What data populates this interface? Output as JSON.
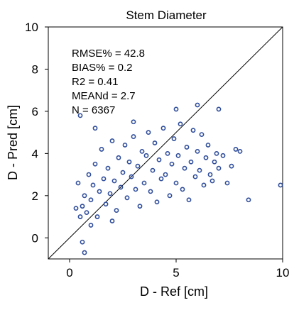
{
  "chart_data": {
    "type": "scatter",
    "title": "Stem Diameter",
    "xlabel": "D - Ref [cm]",
    "ylabel": "D - Pred [cm]",
    "xlim": [
      -1,
      10
    ],
    "ylim": [
      -1,
      10
    ],
    "xticks": [
      "0",
      "5",
      "10"
    ],
    "yticks": [
      "0",
      "2",
      "4",
      "6",
      "8",
      "10"
    ],
    "grid": false,
    "reference_line": "1:1",
    "marker": "open-circle",
    "color": "#2F4D9B",
    "stats": [
      "RMSE% = 42.8",
      "BIAS% = 0.2",
      "R2 = 0.41",
      "MEANd = 2.7",
      "N = 6367"
    ],
    "series": [
      {
        "points": [
          [
            0.5,
            1.0
          ],
          [
            0.6,
            1.5
          ],
          [
            0.7,
            2.0
          ],
          [
            0.8,
            1.2
          ],
          [
            0.9,
            3.0
          ],
          [
            1.0,
            1.8
          ],
          [
            1.1,
            2.5
          ],
          [
            1.2,
            3.5
          ],
          [
            1.3,
            1.0
          ],
          [
            1.4,
            2.2
          ],
          [
            1.5,
            4.2
          ],
          [
            1.6,
            2.8
          ],
          [
            1.7,
            1.6
          ],
          [
            1.8,
            3.3
          ],
          [
            1.9,
            2.1
          ],
          [
            2.0,
            4.6
          ],
          [
            2.1,
            2.7
          ],
          [
            2.2,
            1.3
          ],
          [
            2.3,
            3.8
          ],
          [
            2.4,
            2.4
          ],
          [
            2.5,
            3.1
          ],
          [
            2.6,
            4.4
          ],
          [
            2.7,
            1.9
          ],
          [
            2.8,
            3.6
          ],
          [
            2.9,
            2.9
          ],
          [
            3.0,
            4.8
          ],
          [
            3.1,
            2.3
          ],
          [
            3.2,
            3.4
          ],
          [
            3.3,
            1.5
          ],
          [
            3.4,
            4.1
          ],
          [
            3.5,
            2.6
          ],
          [
            3.6,
            3.9
          ],
          [
            3.7,
            5.0
          ],
          [
            3.8,
            2.2
          ],
          [
            3.9,
            3.2
          ],
          [
            4.0,
            4.5
          ],
          [
            4.1,
            1.7
          ],
          [
            4.2,
            3.7
          ],
          [
            4.3,
            2.8
          ],
          [
            4.4,
            5.2
          ],
          [
            4.5,
            3.0
          ],
          [
            4.6,
            4.0
          ],
          [
            4.7,
            2.0
          ],
          [
            4.8,
            3.5
          ],
          [
            4.9,
            4.7
          ],
          [
            5.0,
            2.6
          ],
          [
            5.1,
            3.9
          ],
          [
            5.2,
            5.4
          ],
          [
            5.3,
            2.3
          ],
          [
            5.4,
            3.3
          ],
          [
            5.5,
            4.3
          ],
          [
            5.6,
            1.8
          ],
          [
            5.7,
            3.6
          ],
          [
            5.8,
            5.1
          ],
          [
            5.9,
            2.9
          ],
          [
            6.0,
            4.1
          ],
          [
            6.1,
            3.2
          ],
          [
            6.2,
            4.9
          ],
          [
            6.3,
            2.5
          ],
          [
            6.4,
            3.8
          ],
          [
            6.5,
            4.4
          ],
          [
            6.6,
            3.0
          ],
          [
            6.7,
            2.7
          ],
          [
            6.8,
            3.6
          ],
          [
            6.9,
            4.0
          ],
          [
            7.0,
            3.3
          ],
          [
            7.2,
            3.9
          ],
          [
            7.4,
            2.6
          ],
          [
            7.6,
            3.4
          ],
          [
            7.8,
            4.2
          ],
          [
            8.0,
            4.1
          ],
          [
            0.5,
            5.8
          ],
          [
            0.6,
            -0.2
          ],
          [
            0.7,
            -0.7
          ],
          [
            1.0,
            0.6
          ],
          [
            2.0,
            0.8
          ],
          [
            6.0,
            6.3
          ],
          [
            5.0,
            6.1
          ],
          [
            7.0,
            6.1
          ],
          [
            9.9,
            2.5
          ],
          [
            8.4,
            1.8
          ],
          [
            0.3,
            1.4
          ],
          [
            0.4,
            2.6
          ],
          [
            1.2,
            5.2
          ],
          [
            3.0,
            5.5
          ]
        ]
      }
    ]
  }
}
